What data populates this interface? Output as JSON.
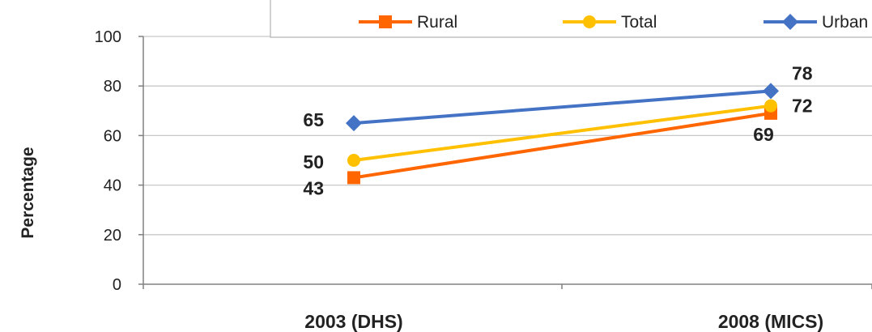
{
  "chart_data": {
    "type": "line",
    "categories": [
      "2003 (DHS)",
      "2008 (MICS)"
    ],
    "series": [
      {
        "name": "Rural",
        "values": [
          43,
          69
        ],
        "color": "#ff6600",
        "marker": "square"
      },
      {
        "name": "Total",
        "values": [
          50,
          72
        ],
        "color": "#ffc000",
        "marker": "circle"
      },
      {
        "name": "Urban",
        "values": [
          65,
          78
        ],
        "color": "#4472c4",
        "marker": "diamond"
      }
    ],
    "data_labels": [
      {
        "series": "Urban",
        "index": 0,
        "text": "65"
      },
      {
        "series": "Total",
        "index": 0,
        "text": "50"
      },
      {
        "series": "Rural",
        "index": 0,
        "text": "43"
      },
      {
        "series": "Urban",
        "index": 1,
        "text": "78"
      },
      {
        "series": "Total",
        "index": 1,
        "text": "72"
      },
      {
        "series": "Rural",
        "index": 1,
        "text": "69"
      }
    ],
    "ylabel": "Percentage",
    "xlabel": "",
    "title": "",
    "ylim": [
      0,
      100
    ],
    "yticks": [
      0,
      20,
      40,
      60,
      80,
      100
    ],
    "grid": true,
    "legend_position": "top-right"
  }
}
